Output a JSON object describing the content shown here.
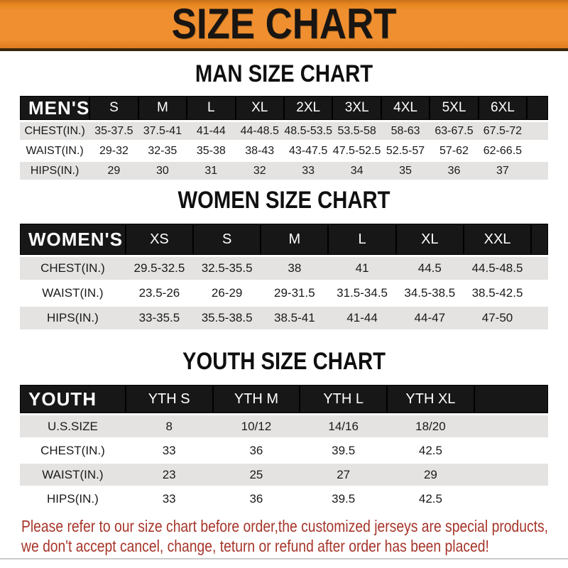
{
  "banner": {
    "title": "SIZE CHART"
  },
  "sections": [
    {
      "heading": "MAN SIZE CHART",
      "header": [
        "MEN'S",
        "S",
        "M",
        "L",
        "XL",
        "2XL",
        "3XL",
        "4XL",
        "5XL",
        "6XL"
      ],
      "rows": [
        [
          "CHEST(IN.)",
          "35-37.5",
          "37.5-41",
          "41-44",
          "44-48.5",
          "48.5-53.5",
          "53.5-58",
          "58-63",
          "63-67.5",
          "67.5-72"
        ],
        [
          "WAIST(IN.)",
          "29-32",
          "32-35",
          "35-38",
          "38-43",
          "43-47.5",
          "47.5-52.5",
          "52.5-57",
          "57-62",
          "62-66.5"
        ],
        [
          "HIPS(IN.)",
          "29",
          "30",
          "31",
          "32",
          "33",
          "34",
          "35",
          "36",
          "37"
        ]
      ]
    },
    {
      "heading": "WOMEN SIZE CHART",
      "header": [
        "WOMEN'S",
        "XS",
        "S",
        "M",
        "L",
        "XL",
        "XXL"
      ],
      "rows": [
        [
          "CHEST(IN.)",
          "29.5-32.5",
          "32.5-35.5",
          "38",
          "41",
          "44.5",
          "44.5-48.5"
        ],
        [
          "WAIST(IN.)",
          "23.5-26",
          "26-29",
          "29-31.5",
          "31.5-34.5",
          "34.5-38.5",
          "38.5-42.5"
        ],
        [
          "HIPS(IN.)",
          "33-35.5",
          "35.5-38.5",
          "38.5-41",
          "41-44",
          "44-47",
          "47-50"
        ]
      ]
    },
    {
      "heading": "YOUTH SIZE CHART",
      "header": [
        "YOUTH",
        "YTH S",
        "YTH M",
        "YTH L",
        "YTH XL"
      ],
      "rows": [
        [
          "U.S.SIZE",
          "8",
          "10/12",
          "14/16",
          "18/20"
        ],
        [
          "CHEST(IN.)",
          "33",
          "36",
          "39.5",
          "42.5"
        ],
        [
          "WAIST(IN.)",
          "23",
          "25",
          "27",
          "29"
        ],
        [
          "HIPS(IN.)",
          "33",
          "36",
          "39.5",
          "42.5"
        ]
      ]
    }
  ],
  "footer": {
    "line1": "Please refer to our size chart before order,the customized jerseys are special products,",
    "line2": "we don't accept cancel, change, teturn or refund after order has been placed!"
  },
  "colors": {
    "banner_orange": "#EC8B2B",
    "header_black": "#171717",
    "row_gray": "#E4E3E2",
    "disclaimer_red": "#A6352A"
  }
}
